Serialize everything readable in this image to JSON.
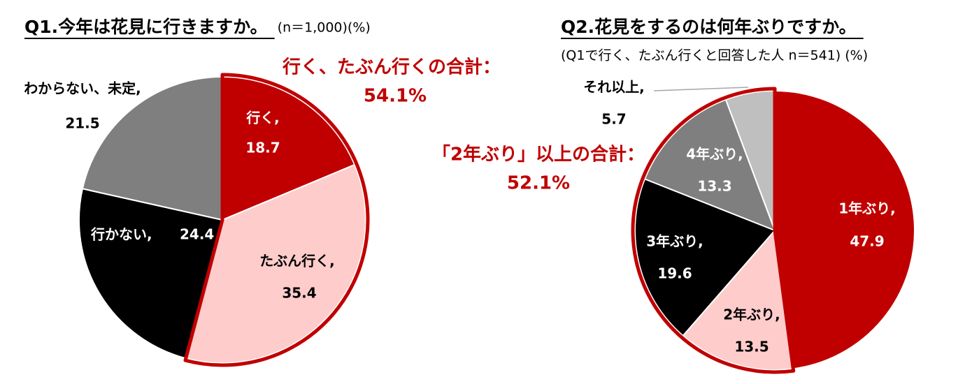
{
  "chart_data": [
    {
      "type": "pie",
      "title": "Q1.今年は花見に行きますか。",
      "subtitle": "(n＝1,000)(%)",
      "categories": [
        "行く,",
        "たぶん行く,",
        "行かない,",
        "わからない、未定,"
      ],
      "values": [
        18.7,
        35.4,
        24.4,
        21.5
      ],
      "colors": [
        "#c00000",
        "#ffcccc",
        "#000000",
        "#7f7f7f"
      ],
      "highlight": {
        "label": "行く、たぶん行くの合計：",
        "value": 54.1,
        "value_label": "54.1%",
        "position": "start"
      }
    },
    {
      "type": "pie",
      "title": "Q2.花見をするのは何年ぶりですか。",
      "subtitle": "(Q1で行く、たぶん行くと回答した人 n＝541) (%)",
      "categories": [
        "1年ぶり,",
        "2年ぶり,",
        "3年ぶり,",
        "4年ぶり,",
        "それ以上,"
      ],
      "values": [
        47.9,
        13.5,
        19.6,
        13.3,
        5.7
      ],
      "colors": [
        "#c00000",
        "#ffcccc",
        "#000000",
        "#7f7f7f",
        "#bfbfbf"
      ],
      "highlight": {
        "label": "「2年ぶり」以上の合計：",
        "value": 52.1,
        "value_label": "52.1%",
        "position": "end"
      }
    }
  ]
}
